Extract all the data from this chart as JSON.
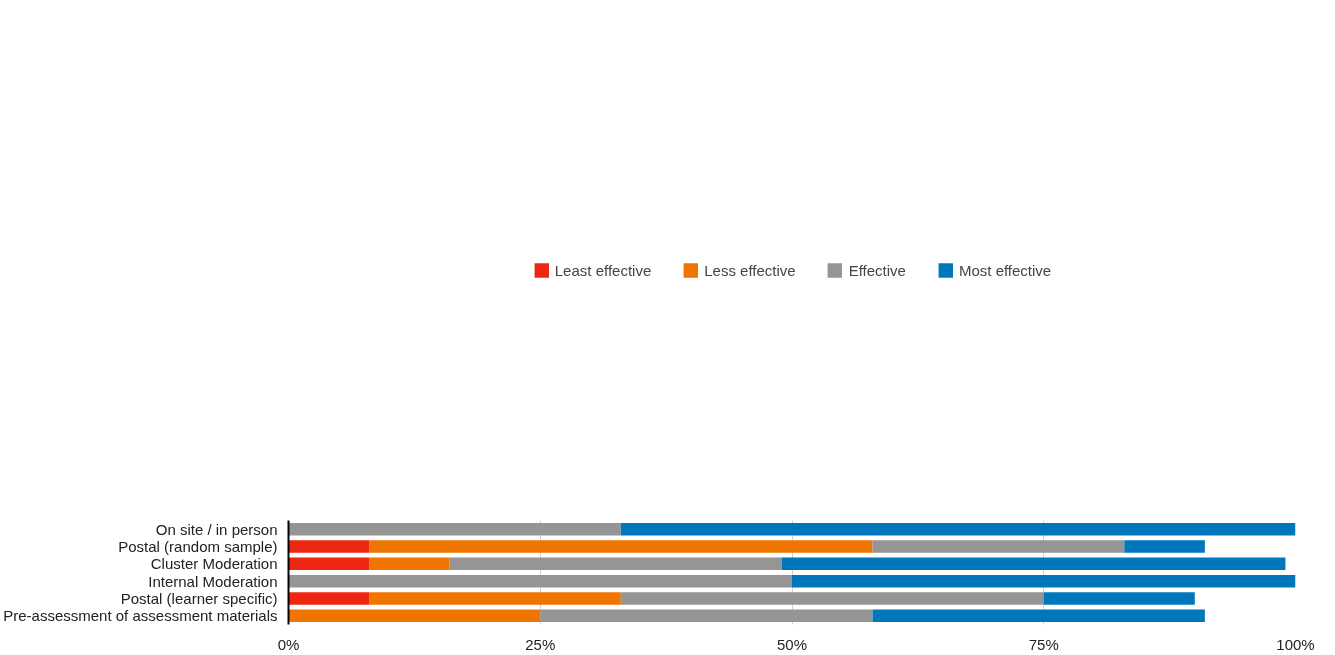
{
  "chart_data": {
    "type": "bar",
    "orientation": "horizontal",
    "stacked": true,
    "categories": [
      "On site / in person",
      "Postal (random sample)",
      "Cluster Moderation",
      "Internal Moderation",
      "Postal (learner specific)",
      "Pre-assessment of assessment materials"
    ],
    "series": [
      {
        "name": "Least effective",
        "color": "#ee2712",
        "values": [
          0,
          8,
          8,
          0,
          8,
          0
        ]
      },
      {
        "name": "Less effective",
        "color": "#f07400",
        "values": [
          0,
          50,
          8,
          0,
          25,
          25
        ]
      },
      {
        "name": "Effective",
        "color": "#959595",
        "values": [
          33,
          25,
          33,
          50,
          42,
          33
        ]
      },
      {
        "name": "Most effective",
        "color": "#0077bc",
        "values": [
          67,
          8,
          50,
          50,
          15,
          33
        ]
      }
    ],
    "xlim": [
      0,
      100
    ],
    "xticks": [
      {
        "value": 0,
        "label": "0%"
      },
      {
        "value": 25,
        "label": "25%"
      },
      {
        "value": 50,
        "label": "50%"
      },
      {
        "value": 75,
        "label": "75%"
      },
      {
        "value": 100,
        "label": "100%"
      }
    ],
    "grid": "x",
    "legend": "top"
  }
}
